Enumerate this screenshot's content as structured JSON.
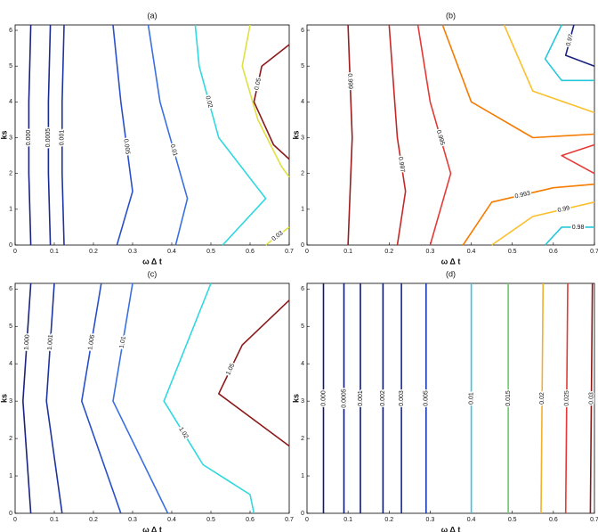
{
  "chart_data": [
    {
      "type": "contour",
      "title": "(a)",
      "x_label": "ω Δ t",
      "y_label": "ks",
      "xlim": [
        0,
        0.7
      ],
      "ylim": [
        0,
        6.15
      ],
      "xticks": [
        0,
        0.1,
        0.2,
        0.3,
        0.4,
        0.5,
        0.6,
        0.7
      ],
      "yticks": [
        0,
        1,
        2,
        3,
        4,
        5,
        6
      ],
      "contours": [
        {
          "level": {
            "value": 0.0001,
            "label": "0.000"
          },
          "color": "#1a237e",
          "x": [
            0.04,
            0.035,
            0.035,
            0.04
          ],
          "y": [
            0,
            2,
            4,
            6.15
          ]
        },
        {
          "level": 0.0005,
          "color": "#1a2a8e",
          "x": [
            0.09,
            0.085,
            0.085,
            0.09
          ],
          "y": [
            0,
            2,
            4,
            6.15
          ]
        },
        {
          "level": 0.001,
          "color": "#1e35a0",
          "x": [
            0.125,
            0.12,
            0.12,
            0.125
          ],
          "y": [
            0,
            2,
            4,
            6.15
          ]
        },
        {
          "level": 0.005,
          "color": "#2a50c8",
          "x": [
            0.26,
            0.3,
            0.27,
            0.25
          ],
          "y": [
            0,
            1.5,
            4,
            6.15
          ]
        },
        {
          "level": 0.01,
          "color": "#3a70e0",
          "x": [
            0.41,
            0.44,
            0.37,
            0.34
          ],
          "y": [
            0,
            1.3,
            4,
            6.15
          ]
        },
        {
          "level": 0.02,
          "color": "#30d8e0",
          "x": [
            0.53,
            0.64,
            0.52,
            0.47,
            0.46
          ],
          "y": [
            0,
            1.3,
            3,
            5,
            6.15
          ]
        },
        {
          "level": 0.03,
          "color": "#e0e040",
          "x": [
            0.64,
            0.7,
            null,
            0.7,
            0.68,
            0.62,
            0.58,
            0.6
          ],
          "y": [
            0,
            0.5,
            null,
            1.9,
            2.2,
            3.5,
            5,
            6.15
          ]
        },
        {
          "level": 0.05,
          "color": "#8b1a1a",
          "x": [
            0.7,
            0.66,
            0.61,
            0.63,
            0.7
          ],
          "y": [
            2.4,
            2.8,
            4,
            5,
            5.6
          ]
        }
      ]
    },
    {
      "type": "contour",
      "title": "(b)",
      "x_label": "ω Δ t",
      "y_label": "ks",
      "xlim": [
        0,
        0.7
      ],
      "ylim": [
        0,
        6.15
      ],
      "xticks": [
        0,
        0.1,
        0.2,
        0.3,
        0.4,
        0.5,
        0.6,
        0.7
      ],
      "yticks": [
        0,
        1,
        2,
        3,
        4,
        5,
        6
      ],
      "contours": [
        {
          "level": 0.999,
          "color": "#9b1c1c",
          "x": [
            0.1,
            0.11,
            0.1
          ],
          "y": [
            0,
            3,
            6.15
          ]
        },
        {
          "level": 0.997,
          "color": "#c62828",
          "x": [
            0.22,
            0.24,
            0.22,
            0.2
          ],
          "y": [
            0,
            1.5,
            3,
            6.15
          ]
        },
        {
          "level": 0.995,
          "color": "#e53935",
          "x": [
            0.3,
            0.35,
            0.3,
            0.27,
            null,
            0.7,
            0.62,
            0.7
          ],
          "y": [
            0,
            2,
            4,
            6.15,
            null,
            2.8,
            2.5,
            2.0
          ]
        },
        {
          "level": 0.993,
          "color": "#f57c00",
          "x": [
            0.38,
            0.45,
            0.6,
            0.7,
            null,
            0.7,
            0.55,
            0.4,
            0.33
          ],
          "y": [
            0,
            1.2,
            1.6,
            1.7,
            null,
            3.1,
            3,
            4,
            6.15
          ]
        },
        {
          "level": 0.99,
          "color": "#fbc02d",
          "x": [
            0.45,
            0.55,
            0.7,
            null,
            0.7,
            0.55,
            0.48
          ],
          "y": [
            0,
            0.8,
            1.2,
            null,
            3.7,
            4.3,
            6.15
          ]
        },
        {
          "level": 0.98,
          "color": "#26c6da",
          "x": [
            0.58,
            0.62,
            0.7,
            null,
            0.7,
            0.62,
            0.58,
            0.62
          ],
          "y": [
            0,
            0.5,
            0.5,
            null,
            4.6,
            4.6,
            5.2,
            6.15
          ]
        },
        {
          "level": 0.97,
          "color": "#1a237e",
          "x": [
            0.7,
            0.63,
            0.65
          ],
          "y": [
            5.0,
            5.3,
            6.15
          ]
        }
      ]
    },
    {
      "type": "contour",
      "title": "(c)",
      "x_label": "ω Δ t",
      "y_label": "ks",
      "xlim": [
        0,
        0.7
      ],
      "ylim": [
        0,
        6.15
      ],
      "xticks": [
        0,
        0.1,
        0.2,
        0.3,
        0.4,
        0.5,
        0.6,
        0.7
      ],
      "yticks": [
        0,
        1,
        2,
        3,
        4,
        5,
        6
      ],
      "contours": [
        {
          "level": {
            "value": 1,
            "label": "1.000"
          },
          "color": "#1a237e",
          "x": [
            0.04,
            0.02,
            0.04
          ],
          "y": [
            0,
            3,
            6.15
          ]
        },
        {
          "level": 1.001,
          "color": "#1e35a0",
          "x": [
            0.12,
            0.08,
            0.1
          ],
          "y": [
            0,
            3,
            6.15
          ]
        },
        {
          "level": 1.005,
          "color": "#2a50c8",
          "x": [
            0.27,
            0.17,
            0.22
          ],
          "y": [
            0,
            3,
            6.15
          ]
        },
        {
          "level": 1.01,
          "color": "#3a70e0",
          "x": [
            0.39,
            0.25,
            0.3
          ],
          "y": [
            0,
            3,
            6.15
          ]
        },
        {
          "level": 1.02,
          "color": "#30d8e0",
          "x": [
            0.61,
            0.6,
            0.48,
            0.38,
            0.5
          ],
          "y": [
            0,
            0.5,
            1.3,
            3,
            6.15
          ]
        },
        {
          "level": 1.05,
          "color": "#8b1a1a",
          "x": [
            0.7,
            0.52,
            0.58,
            0.7
          ],
          "y": [
            1.8,
            3.2,
            4.5,
            5.7
          ]
        }
      ]
    },
    {
      "type": "contour",
      "title": "(d)",
      "x_label": "ω Δ t",
      "y_label": "ks",
      "xlim": [
        0,
        0.7
      ],
      "ylim": [
        0,
        6.15
      ],
      "xticks": [
        0,
        0.1,
        0.2,
        0.3,
        0.4,
        0.5,
        0.6,
        0.7
      ],
      "yticks": [
        0,
        1,
        2,
        3,
        4,
        5,
        6
      ],
      "contours": [
        {
          "level": {
            "value": 0.0001,
            "label": "0.000"
          },
          "color": "#0d1a6e",
          "x": [
            0.04,
            0.04
          ],
          "y": [
            0,
            6.15
          ]
        },
        {
          "level": 0.0005,
          "color": "#0d1a6e",
          "x": [
            0.09,
            0.09
          ],
          "y": [
            0,
            6.15
          ]
        },
        {
          "level": 0.001,
          "color": "#0d1a6e",
          "x": [
            0.13,
            0.13
          ],
          "y": [
            0,
            6.15
          ]
        },
        {
          "level": 0.002,
          "color": "#0d1a6e",
          "x": [
            0.185,
            0.185
          ],
          "y": [
            0,
            6.15
          ]
        },
        {
          "level": 0.003,
          "color": "#12288e",
          "x": [
            0.23,
            0.23
          ],
          "y": [
            0,
            6.15
          ]
        },
        {
          "level": 0.005,
          "color": "#1a3ab0",
          "x": [
            0.29,
            0.29
          ],
          "y": [
            0,
            6.15
          ]
        },
        {
          "level": 0.01,
          "color": "#30c8e0",
          "x": [
            0.4,
            0.4
          ],
          "y": [
            0,
            6.15
          ]
        },
        {
          "level": 0.015,
          "color": "#66cc66",
          "x": [
            0.49,
            0.49
          ],
          "y": [
            0,
            6.15
          ]
        },
        {
          "level": 0.02,
          "color": "#f0b030",
          "x": [
            0.57,
            0.575
          ],
          "y": [
            0,
            6.15
          ]
        },
        {
          "level": 0.025,
          "color": "#e53935",
          "x": [
            0.63,
            0.635
          ],
          "y": [
            0,
            6.15
          ]
        },
        {
          "level": 0.03,
          "color": "#8b1a1a",
          "x": [
            0.69,
            0.695
          ],
          "y": [
            0,
            6.15
          ]
        }
      ]
    }
  ]
}
